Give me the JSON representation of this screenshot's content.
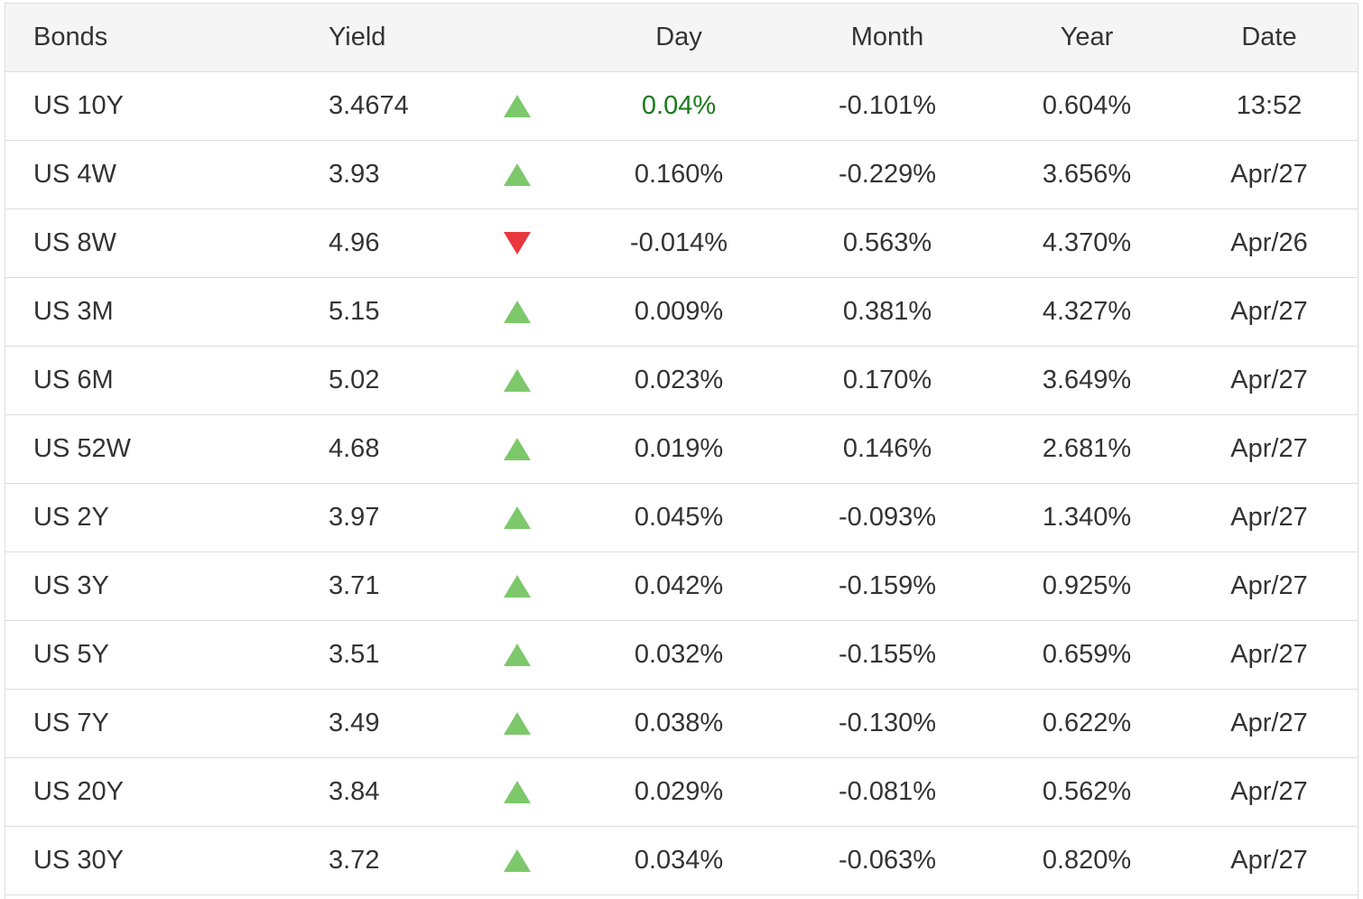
{
  "table": {
    "columns": [
      "Bonds",
      "Yield",
      "Day",
      "Month",
      "Year",
      "Date"
    ],
    "rows": [
      [
        "US 10Y",
        "3.4674",
        "0.04%",
        "-0.101%",
        "0.604%",
        "13:52"
      ],
      [
        "US 4W",
        "3.93",
        "0.160%",
        "-0.229%",
        "3.656%",
        "Apr/27"
      ],
      [
        "US 8W",
        "4.96",
        "-0.014%",
        "0.563%",
        "4.370%",
        "Apr/26"
      ],
      [
        "US 3M",
        "5.15",
        "0.009%",
        "0.381%",
        "4.327%",
        "Apr/27"
      ],
      [
        "US 6M",
        "5.02",
        "0.023%",
        "0.170%",
        "3.649%",
        "Apr/27"
      ],
      [
        "US 52W",
        "4.68",
        "0.019%",
        "0.146%",
        "2.681%",
        "Apr/27"
      ],
      [
        "US 2Y",
        "3.97",
        "0.045%",
        "-0.093%",
        "1.340%",
        "Apr/27"
      ],
      [
        "US 3Y",
        "3.71",
        "0.042%",
        "-0.159%",
        "0.925%",
        "Apr/27"
      ],
      [
        "US 5Y",
        "3.51",
        "0.032%",
        "-0.155%",
        "0.659%",
        "Apr/27"
      ],
      [
        "US 7Y",
        "3.49",
        "0.038%",
        "-0.130%",
        "0.622%",
        "Apr/27"
      ],
      [
        "US 20Y",
        "3.84",
        "0.029%",
        "-0.081%",
        "0.562%",
        "Apr/27"
      ],
      [
        "US 30Y",
        "3.72",
        "0.034%",
        "-0.063%",
        "0.820%",
        "Apr/27"
      ]
    ]
  }
}
